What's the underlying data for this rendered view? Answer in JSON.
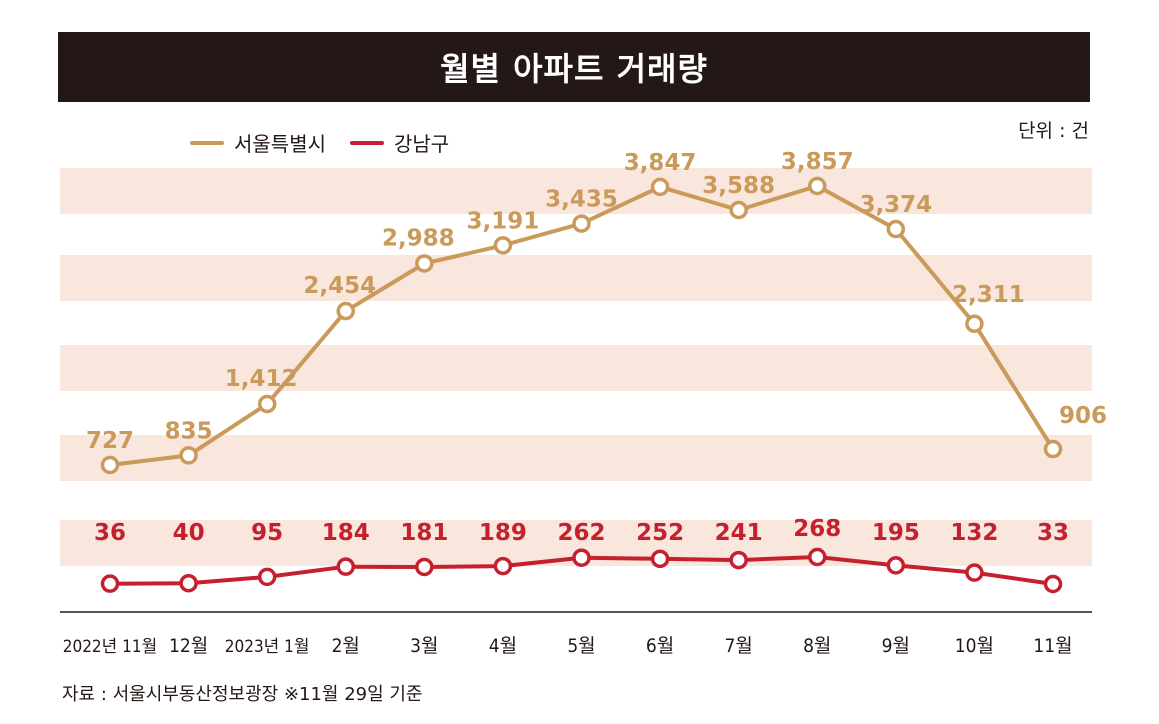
{
  "header": {
    "title": "월별 아파트 거래량"
  },
  "unit_label": "단위 : 건",
  "source_label": "자료 : 서울시부동산정보광장 ※11월 29일 기준",
  "colors": {
    "seoul": "#c99a5a",
    "gangnam": "#c5202e",
    "band": "#f9e6dc",
    "title_bg": "#231815"
  },
  "chart_data": {
    "type": "line",
    "title": "월별 아파트 거래량",
    "categories": [
      "2022년 11월",
      "12월",
      "2023년 1월",
      "2월",
      "3월",
      "4월",
      "5월",
      "6월",
      "7월",
      "8월",
      "9월",
      "10월",
      "11월"
    ],
    "series": [
      {
        "name": "서울특별시",
        "values": [
          727,
          835,
          1412,
          2454,
          2988,
          3191,
          3435,
          3847,
          3588,
          3857,
          3374,
          2311,
          906
        ],
        "labels": [
          "727",
          "835",
          "1,412",
          "2,454",
          "2,988",
          "3,191",
          "3,435",
          "3,847",
          "3,588",
          "3,857",
          "3,374",
          "2,311",
          "906"
        ]
      },
      {
        "name": "강남구",
        "values": [
          36,
          40,
          95,
          184,
          181,
          189,
          262,
          252,
          241,
          268,
          195,
          132,
          33
        ],
        "labels": [
          "36",
          "40",
          "95",
          "184",
          "181",
          "189",
          "262",
          "252",
          "241",
          "268",
          "195",
          "132",
          "33"
        ]
      }
    ],
    "xlabel": "",
    "ylabel": "건",
    "legend": "top-left"
  }
}
